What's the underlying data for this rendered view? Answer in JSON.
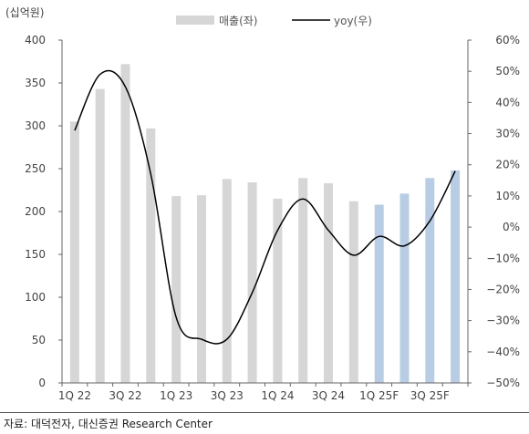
{
  "unit_label": "(십억원)",
  "source_text": "자료: 대덕전자, 대신증권 Research Center",
  "colors": {
    "actual_bar": "#d6d6d6",
    "forecast_bar": "#b8cde3",
    "line": "#000000"
  },
  "chart_data": {
    "type": "bar",
    "categories": [
      "1Q22",
      "2Q22",
      "3Q22",
      "4Q22",
      "1Q23",
      "2Q23",
      "3Q23",
      "4Q23",
      "1Q24",
      "2Q24",
      "3Q24",
      "4Q24",
      "1Q25F",
      "2Q25F",
      "3Q25F",
      "4Q25F"
    ],
    "x_tick_labels": [
      "1Q22",
      "3Q22",
      "1Q23",
      "3Q23",
      "1Q24",
      "3Q24",
      "1Q25F",
      "3Q25F"
    ],
    "forecast_from_index": 12,
    "series": [
      {
        "name": "매출(좌)",
        "type": "bar",
        "axis": "left",
        "values": [
          305,
          343,
          372,
          297,
          218,
          219,
          238,
          234,
          215,
          239,
          233,
          212,
          208,
          221,
          239,
          248
        ]
      },
      {
        "name": "yoy(우)",
        "type": "line",
        "axis": "right",
        "values": [
          31,
          49,
          45,
          17,
          -29,
          -36,
          -36,
          -21,
          -1,
          9,
          -1,
          -9,
          -3,
          -6,
          2,
          18
        ]
      }
    ],
    "y_left": {
      "ylim": [
        0,
        400
      ],
      "ticks": [
        0,
        50,
        100,
        150,
        200,
        250,
        300,
        350,
        400
      ]
    },
    "y_right": {
      "ylim": [
        -50,
        60
      ],
      "ticks": [
        -50,
        -40,
        -30,
        -20,
        -10,
        0,
        10,
        20,
        30,
        40,
        50,
        60
      ],
      "format": "percent"
    },
    "legend": "top-center",
    "grid": false
  }
}
